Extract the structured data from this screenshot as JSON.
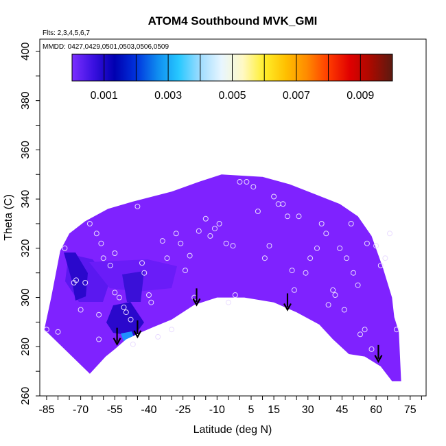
{
  "chart_data": {
    "type": "heatmap",
    "title": "ATOM4 Southbound MVK_GMI",
    "flights_label": "Flts: 2,3,4,5,6,7",
    "dates_label": "MMDD: 0427,0429,0501,0503,0506,0509",
    "xlabel": "Latitude (deg N)",
    "ylabel": "Theta (C)",
    "xlim": [
      -88,
      82
    ],
    "ylim": [
      260,
      405
    ],
    "x_ticks": [
      "-85",
      "-70",
      "-55",
      "-40",
      "-25",
      "-10",
      "5",
      "15",
      "30",
      "45",
      "60",
      "75"
    ],
    "x_tick_values": [
      -85,
      -70,
      -55,
      -40,
      -25,
      -10,
      5,
      15,
      30,
      45,
      60,
      75
    ],
    "y_ticks": [
      "260",
      "280",
      "300",
      "320",
      "340",
      "360",
      "380",
      "400"
    ],
    "y_tick_values": [
      260,
      280,
      300,
      320,
      340,
      360,
      380,
      400
    ],
    "colorbar": {
      "range": [
        0,
        0.01
      ],
      "ticks": [
        "0.001",
        "0.003",
        "0.005",
        "0.007",
        "0.009"
      ],
      "tick_values": [
        0.001,
        0.003,
        0.005,
        0.007,
        0.009
      ],
      "colors": [
        "#7b2fff",
        "#3a10e0",
        "#0000b0",
        "#0033dd",
        "#0f8cf0",
        "#27c8ff",
        "#9fdcff",
        "#e8f6ff",
        "#fff9c4",
        "#ffee2a",
        "#ffc000",
        "#ff8a00",
        "#ff3b00",
        "#e00000",
        "#a80a00",
        "#5a1a10"
      ]
    },
    "field_color": "#7f22ff",
    "dark_patch_colors": [
      "#2a08cc",
      "#5a18f0"
    ],
    "light_patch_color": "#1e90ff",
    "field_outline": [
      [
        -86,
        287
      ],
      [
        -83,
        300
      ],
      [
        -79,
        319
      ],
      [
        -75,
        326
      ],
      [
        -68,
        331
      ],
      [
        -58,
        336
      ],
      [
        -47,
        339
      ],
      [
        -30,
        343
      ],
      [
        -18,
        347
      ],
      [
        -8,
        350
      ],
      [
        10,
        349
      ],
      [
        22,
        346
      ],
      [
        33,
        342
      ],
      [
        44,
        338
      ],
      [
        52,
        333
      ],
      [
        58,
        325
      ],
      [
        63,
        312
      ],
      [
        67,
        300
      ],
      [
        68,
        292
      ],
      [
        70,
        286
      ],
      [
        71,
        266
      ],
      [
        67,
        266
      ],
      [
        62,
        272
      ],
      [
        55,
        276
      ],
      [
        48,
        277
      ],
      [
        41,
        283
      ],
      [
        35,
        289
      ],
      [
        25,
        294
      ],
      [
        15,
        298
      ],
      [
        2,
        300
      ],
      [
        -10,
        300
      ],
      [
        -20,
        297
      ],
      [
        -30,
        291
      ],
      [
        -38,
        288
      ],
      [
        -43,
        286
      ],
      [
        -50,
        283
      ],
      [
        -55,
        279
      ],
      [
        -59,
        276
      ],
      [
        -66,
        269
      ]
    ],
    "markers": [
      [
        -85,
        287
      ],
      [
        -80,
        286
      ],
      [
        -77,
        320
      ],
      [
        -73,
        306
      ],
      [
        -72,
        307
      ],
      [
        -70,
        295
      ],
      [
        -68,
        306
      ],
      [
        -66,
        330
      ],
      [
        -63,
        326
      ],
      [
        -61,
        322
      ],
      [
        -62,
        293
      ],
      [
        -62,
        283
      ],
      [
        -60,
        316
      ],
      [
        -57,
        313
      ],
      [
        -55,
        318
      ],
      [
        -55,
        302
      ],
      [
        -53,
        300
      ],
      [
        -51,
        296
      ],
      [
        -50,
        294
      ],
      [
        -48,
        291
      ],
      [
        -47,
        281
      ],
      [
        -45,
        337
      ],
      [
        -43,
        314
      ],
      [
        -42,
        310
      ],
      [
        -40,
        301
      ],
      [
        -39,
        298
      ],
      [
        -36,
        284
      ],
      [
        -34,
        323
      ],
      [
        -32,
        316
      ],
      [
        -30,
        287
      ],
      [
        -28,
        326
      ],
      [
        -26,
        322
      ],
      [
        -24,
        311
      ],
      [
        -22,
        317
      ],
      [
        -20,
        300
      ],
      [
        -18,
        327
      ],
      [
        -15,
        332
      ],
      [
        -13,
        325
      ],
      [
        -11,
        328
      ],
      [
        -9,
        330
      ],
      [
        -6,
        322
      ],
      [
        -5,
        298
      ],
      [
        -3,
        321
      ],
      [
        -2,
        301
      ],
      [
        0,
        347
      ],
      [
        3,
        347
      ],
      [
        6,
        345
      ],
      [
        8,
        335
      ],
      [
        11,
        316
      ],
      [
        13,
        321
      ],
      [
        15,
        341
      ],
      [
        17,
        338
      ],
      [
        19,
        338
      ],
      [
        21,
        333
      ],
      [
        23,
        311
      ],
      [
        24,
        303
      ],
      [
        26,
        333
      ],
      [
        29,
        310
      ],
      [
        31,
        316
      ],
      [
        34,
        320
      ],
      [
        36,
        330
      ],
      [
        38,
        326
      ],
      [
        39,
        297
      ],
      [
        41,
        303
      ],
      [
        42,
        301
      ],
      [
        44,
        320
      ],
      [
        46,
        295
      ],
      [
        47,
        316
      ],
      [
        49,
        330
      ],
      [
        50,
        310
      ],
      [
        52,
        305
      ],
      [
        53,
        285
      ],
      [
        55,
        287
      ],
      [
        56,
        322
      ],
      [
        58,
        279
      ],
      [
        60,
        321
      ],
      [
        62,
        313
      ],
      [
        64,
        316
      ],
      [
        66,
        326
      ],
      [
        69,
        287
      ]
    ],
    "arrows": [
      [
        -54,
        281
      ],
      [
        -45,
        284
      ],
      [
        -19,
        297
      ],
      [
        21,
        295
      ],
      [
        61,
        274
      ]
    ]
  }
}
